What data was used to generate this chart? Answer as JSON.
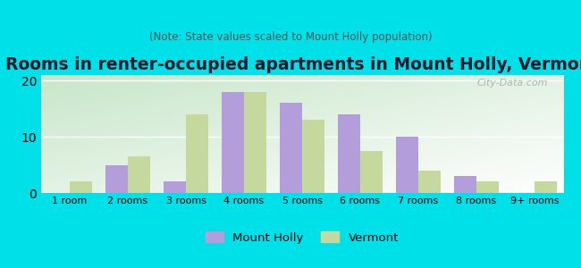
{
  "title": "Rooms in renter-occupied apartments in Mount Holly, Vermont",
  "subtitle": "(Note: State values scaled to Mount Holly population)",
  "categories": [
    "1 room",
    "2 rooms",
    "3 rooms",
    "4 rooms",
    "5 rooms",
    "6 rooms",
    "7 rooms",
    "8 rooms",
    "9+ rooms"
  ],
  "mount_holly": [
    0,
    5,
    2,
    18,
    16,
    14,
    10,
    3,
    0
  ],
  "vermont": [
    2,
    6.5,
    14,
    18,
    13,
    7.5,
    4,
    2,
    2
  ],
  "mount_holly_color": "#b39ddb",
  "vermont_color": "#c5d89d",
  "background_outer": "#00e0e8",
  "ylim": [
    0,
    21
  ],
  "yticks": [
    0,
    10,
    20
  ],
  "bar_width": 0.38,
  "title_fontsize": 13.5,
  "subtitle_fontsize": 8.5,
  "watermark": "City-Data.com"
}
